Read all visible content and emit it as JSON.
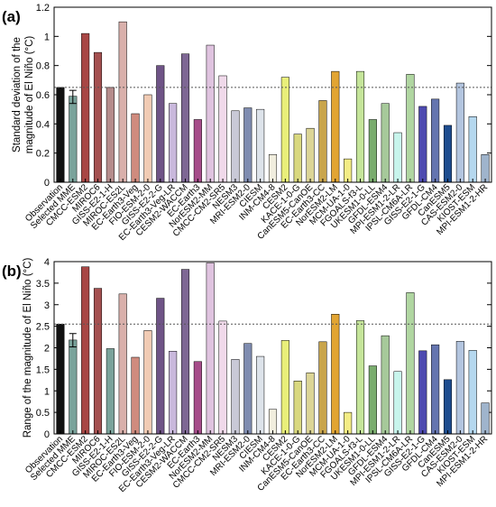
{
  "chart_data": [
    {
      "panel_label": "(a)",
      "type": "bar",
      "ylabel": "Standard deviation of the\nmagnitude of El Niño (°C)",
      "ylim": [
        0,
        1.2
      ],
      "yticks": [
        "0",
        "0.2",
        "0.4",
        "0.6",
        "0.8",
        "1",
        "1.2"
      ],
      "reference_line": {
        "value": 0.65,
        "style": "dotted"
      },
      "error_bar": {
        "category": "Selected MME",
        "low": 0.54,
        "high": 0.63
      },
      "categories": [
        "Observation",
        "Selected MME",
        "CMCC-ESM2",
        "MIROC6",
        "GISS-E2-1-H",
        "MIROC-ES2L",
        "EC-Earth3-Veg",
        "FIO-ESM-2-0",
        "GISS-E2-2-G",
        "EC-Earth3-Veg-LR",
        "CESM2-WACCM",
        "EC-Earth3",
        "NorESM2-MM",
        "CMCC-CM2-SR5",
        "NESM3",
        "MRI-ESM2-0",
        "CIESM",
        "INM-CM4-8",
        "CESM2",
        "KACE-1-0-G",
        "CanESM5-CanOE",
        "EC-Earth3-CC",
        "NorESM2-LM",
        "MCM-UA-1-0",
        "FGOALS-f3-L",
        "UKESM1-0-LL",
        "GFDL-ESM4",
        "MPI-ESM1-2-LR",
        "IPSL-CM6A-LR",
        "GISS-E2-1-G",
        "GFDL-CM4",
        "CanESM5",
        "CAS-ESM2-0",
        "KIOST-ESM",
        "MPI-ESM1-2-HR"
      ],
      "values": [
        0.65,
        0.59,
        1.02,
        0.89,
        0.65,
        1.1,
        0.47,
        0.6,
        0.8,
        0.54,
        0.88,
        0.43,
        0.94,
        0.73,
        0.49,
        0.51,
        0.5,
        0.19,
        0.72,
        0.33,
        0.37,
        0.56,
        0.76,
        0.16,
        0.76,
        0.43,
        0.54,
        0.34,
        0.74,
        0.52,
        0.57,
        0.39,
        0.68,
        0.45,
        0.19
      ],
      "colors": [
        "#111111",
        "#7aa39b",
        "#a84745",
        "#a45050",
        "#b58c8c",
        "#d9b0ab",
        "#cf8b7e",
        "#f1cbb4",
        "#6f5487",
        "#c9b8dc",
        "#7e6794",
        "#a64c8a",
        "#dfc3df",
        "#f0d9ea",
        "#c9c9d7",
        "#7f8cb0",
        "#dde3ea",
        "#f1eede",
        "#e9ef7a",
        "#d9d87f",
        "#dcd596",
        "#c9a54c",
        "#e2a533",
        "#f3ec85",
        "#c5e59a",
        "#7aad6e",
        "#a6c99a",
        "#c8f5ec",
        "#b0d6a1",
        "#4d4ab0",
        "#6575b0",
        "#1e4d8f",
        "#b3c5df",
        "#b5d8ef",
        "#9fb4cc"
      ]
    },
    {
      "panel_label": "(b)",
      "type": "bar",
      "ylabel": "Range of the magnitude of El Niño (°C)",
      "ylim": [
        0,
        4
      ],
      "yticks": [
        "0",
        "0.5",
        "1",
        "1.5",
        "2",
        "2.5",
        "3",
        "3.5",
        "4"
      ],
      "reference_line": {
        "value": 2.55,
        "style": "dotted"
      },
      "error_bar": {
        "category": "Selected MME",
        "low": 2.02,
        "high": 2.33
      },
      "categories": [
        "Observation",
        "Selected MME",
        "CMCC-ESM2",
        "MIROC6",
        "GISS-E2-1-H",
        "MIROC-ES2L",
        "EC-Earth3-Veg",
        "FIO-ESM-2-0",
        "GISS-E2-2-G",
        "EC-Earth3-Veg-LR",
        "CESM2-WACCM",
        "EC-Earth3",
        "NorESM2-MM",
        "CMCC-CM2-SR5",
        "NESM3",
        "MRI-ESM2-0",
        "CIESM",
        "INM-CM4-8",
        "CESM2",
        "KACE-1-0-G",
        "CanESM5-CanOE",
        "EC-Earth3-CC",
        "NorESM2-LM",
        "MCM-UA-1-0",
        "FGOALS-f3-L",
        "UKESM1-0-LL",
        "GFDL-ESM4",
        "MPI-ESM1-2-LR",
        "IPSL-CM6A-LR",
        "GISS-E2-1-G",
        "GFDL-CM4",
        "CanESM5",
        "CAS-ESM2-0",
        "KIOST-ESM",
        "MPI-ESM1-2-HR"
      ],
      "values": [
        2.55,
        2.18,
        3.88,
        3.38,
        1.98,
        3.25,
        1.78,
        2.4,
        3.15,
        1.92,
        3.82,
        1.68,
        3.97,
        2.62,
        1.73,
        2.1,
        1.8,
        0.57,
        2.17,
        1.23,
        1.42,
        2.14,
        2.78,
        0.5,
        2.63,
        1.58,
        2.28,
        1.45,
        3.28,
        1.93,
        2.07,
        1.26,
        2.15,
        1.94,
        0.72
      ],
      "colors": [
        "#111111",
        "#7aa39b",
        "#a84745",
        "#a45050",
        "#7aa39b",
        "#d9b0ab",
        "#cf8b7e",
        "#f1cbb4",
        "#6f5487",
        "#c9b8dc",
        "#7e6794",
        "#a64c8a",
        "#dfc3df",
        "#f0d9ea",
        "#c9c9d7",
        "#7f8cb0",
        "#dde3ea",
        "#f1eede",
        "#e9ef7a",
        "#d9d87f",
        "#dcd596",
        "#c9a54c",
        "#e2a533",
        "#f3ec85",
        "#c5e59a",
        "#7aad6e",
        "#a6c99a",
        "#c8f5ec",
        "#b0d6a1",
        "#4d4ab0",
        "#6575b0",
        "#1e4d8f",
        "#b3c5df",
        "#b5d8ef",
        "#9fb4cc"
      ]
    }
  ]
}
